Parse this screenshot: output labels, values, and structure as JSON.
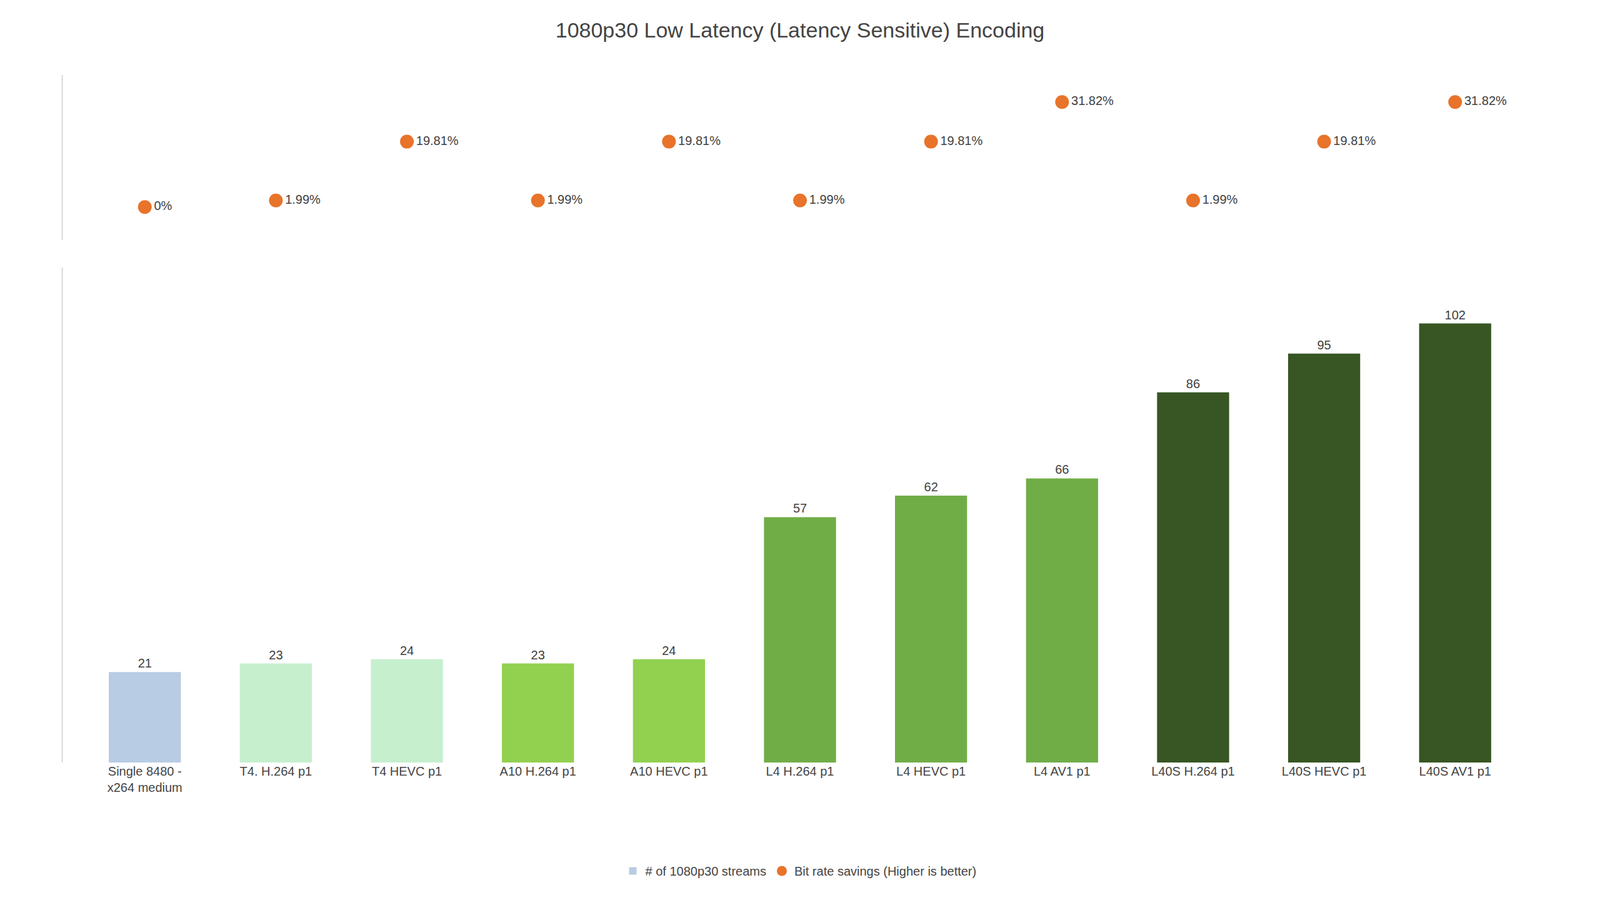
{
  "chart_data": {
    "type": "bar",
    "title": "1080p30 Low Latency (Latency Sensitive) Encoding",
    "categories": [
      "Single 8480 -\nx264 medium",
      "T4. H.264 p1",
      "T4 HEVC p1",
      "A10 H.264 p1",
      "A10 HEVC p1",
      "L4 H.264 p1",
      "L4 HEVC p1",
      "L4 AV1 p1",
      "L40S H.264 p1",
      "L40S HEVC p1",
      "L40S AV1 p1"
    ],
    "ylim": [
      0,
      115
    ],
    "y2lim": [
      -10,
      40
    ],
    "tick_labels": "x",
    "grid": false,
    "legend": "bottom",
    "data_labels": true,
    "series": [
      {
        "name": "# of 1080p30 streams",
        "type": "bar",
        "colors": [
          "#b8cce4",
          "#c6efce",
          "#c6efce",
          "#92d050",
          "#92d050",
          "#70ad47",
          "#70ad47",
          "#70ad47",
          "#375623",
          "#375623",
          "#375623"
        ],
        "values": [
          21,
          23,
          24,
          23,
          24,
          57,
          62,
          66,
          86,
          95,
          102
        ]
      },
      {
        "name": "Bit rate savings (Higher is better)",
        "type": "scatter",
        "axis": "y2",
        "color": "#e8732a",
        "marker": "circle",
        "values": [
          0,
          1.99,
          19.81,
          1.99,
          19.81,
          1.99,
          19.81,
          31.82,
          1.99,
          19.81,
          31.82
        ],
        "value_labels": [
          "0%",
          "1.99%",
          "19.81%",
          "1.99%",
          "19.81%",
          "1.99%",
          "19.81%",
          "31.82%",
          "1.99%",
          "19.81%",
          "31.82%"
        ]
      }
    ]
  }
}
